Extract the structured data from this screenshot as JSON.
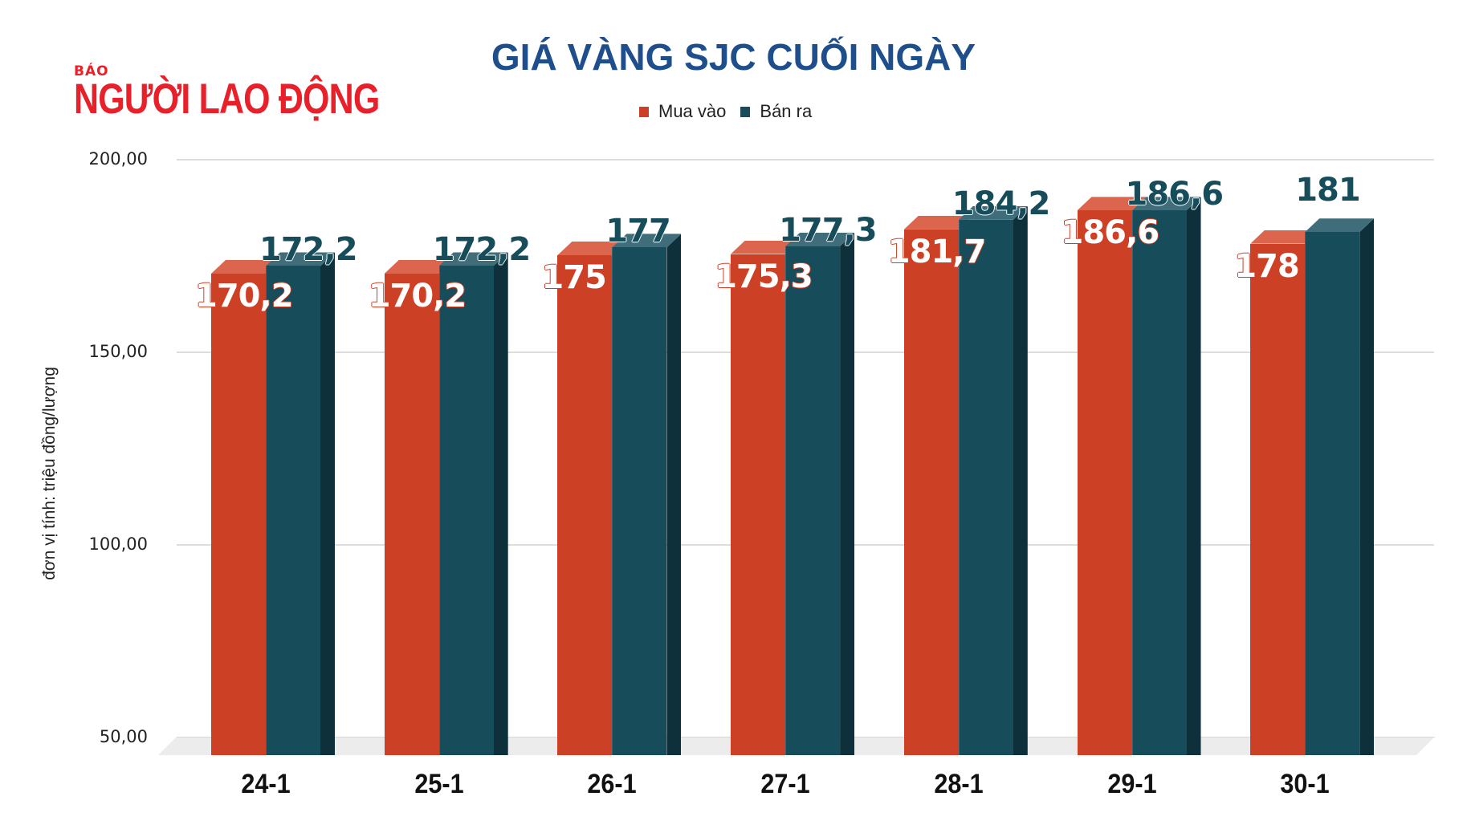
{
  "logo": {
    "top": "BÁO",
    "name": "NGƯỜI LAO ĐỘNG"
  },
  "title": "GIÁ VÀNG SJC CUỐI NGÀY",
  "legend": [
    {
      "label": "Mua vào",
      "color": "#cc4125"
    },
    {
      "label": "Bán ra",
      "color": "#174c5a"
    }
  ],
  "y_axis": {
    "label": "đơn vị tính: triệu đồng/lượng",
    "ticks": [
      "200,00",
      "150,00",
      "100,00",
      "50,00"
    ]
  },
  "x_axis": {
    "ticks": [
      "24-1",
      "25-1",
      "26-1",
      "27-1",
      "28-1",
      "29-1",
      "30-1"
    ]
  },
  "data_labels": {
    "buy": [
      "170,2",
      "170,2",
      "175",
      "175,3",
      "181,7",
      "186,6",
      "178"
    ],
    "sell": [
      "172,2",
      "172,2",
      "177",
      "177,3",
      "184,2",
      "186,6",
      "181"
    ]
  },
  "colors": {
    "buy_front": "#cc4125",
    "buy_top": "#dc664d",
    "buy_side": "#a8321c",
    "sell_front": "#174c5a",
    "sell_top": "#3f6e7a",
    "sell_side": "#0d303a",
    "title": "#1f4e8c",
    "logo": "#e8202a",
    "floor": "#ececec"
  },
  "chart_data": {
    "type": "bar",
    "title": "GIÁ VÀNG SJC CUỐI NGÀY",
    "xlabel": "",
    "ylabel": "đơn vị tính: triệu đồng/lượng",
    "categories": [
      "24-1",
      "25-1",
      "26-1",
      "27-1",
      "28-1",
      "29-1",
      "30-1"
    ],
    "series": [
      {
        "name": "Mua vào",
        "values": [
          170.2,
          170.2,
          175,
          175.3,
          181.7,
          186.6,
          178
        ]
      },
      {
        "name": "Bán ra",
        "values": [
          172.2,
          172.2,
          177,
          177.3,
          184.2,
          186.6,
          181
        ]
      }
    ],
    "ylim": [
      50,
      200
    ],
    "yticks": [
      50,
      100,
      150,
      200
    ],
    "grid": true,
    "legend_position": "top",
    "style": "3d-column"
  }
}
